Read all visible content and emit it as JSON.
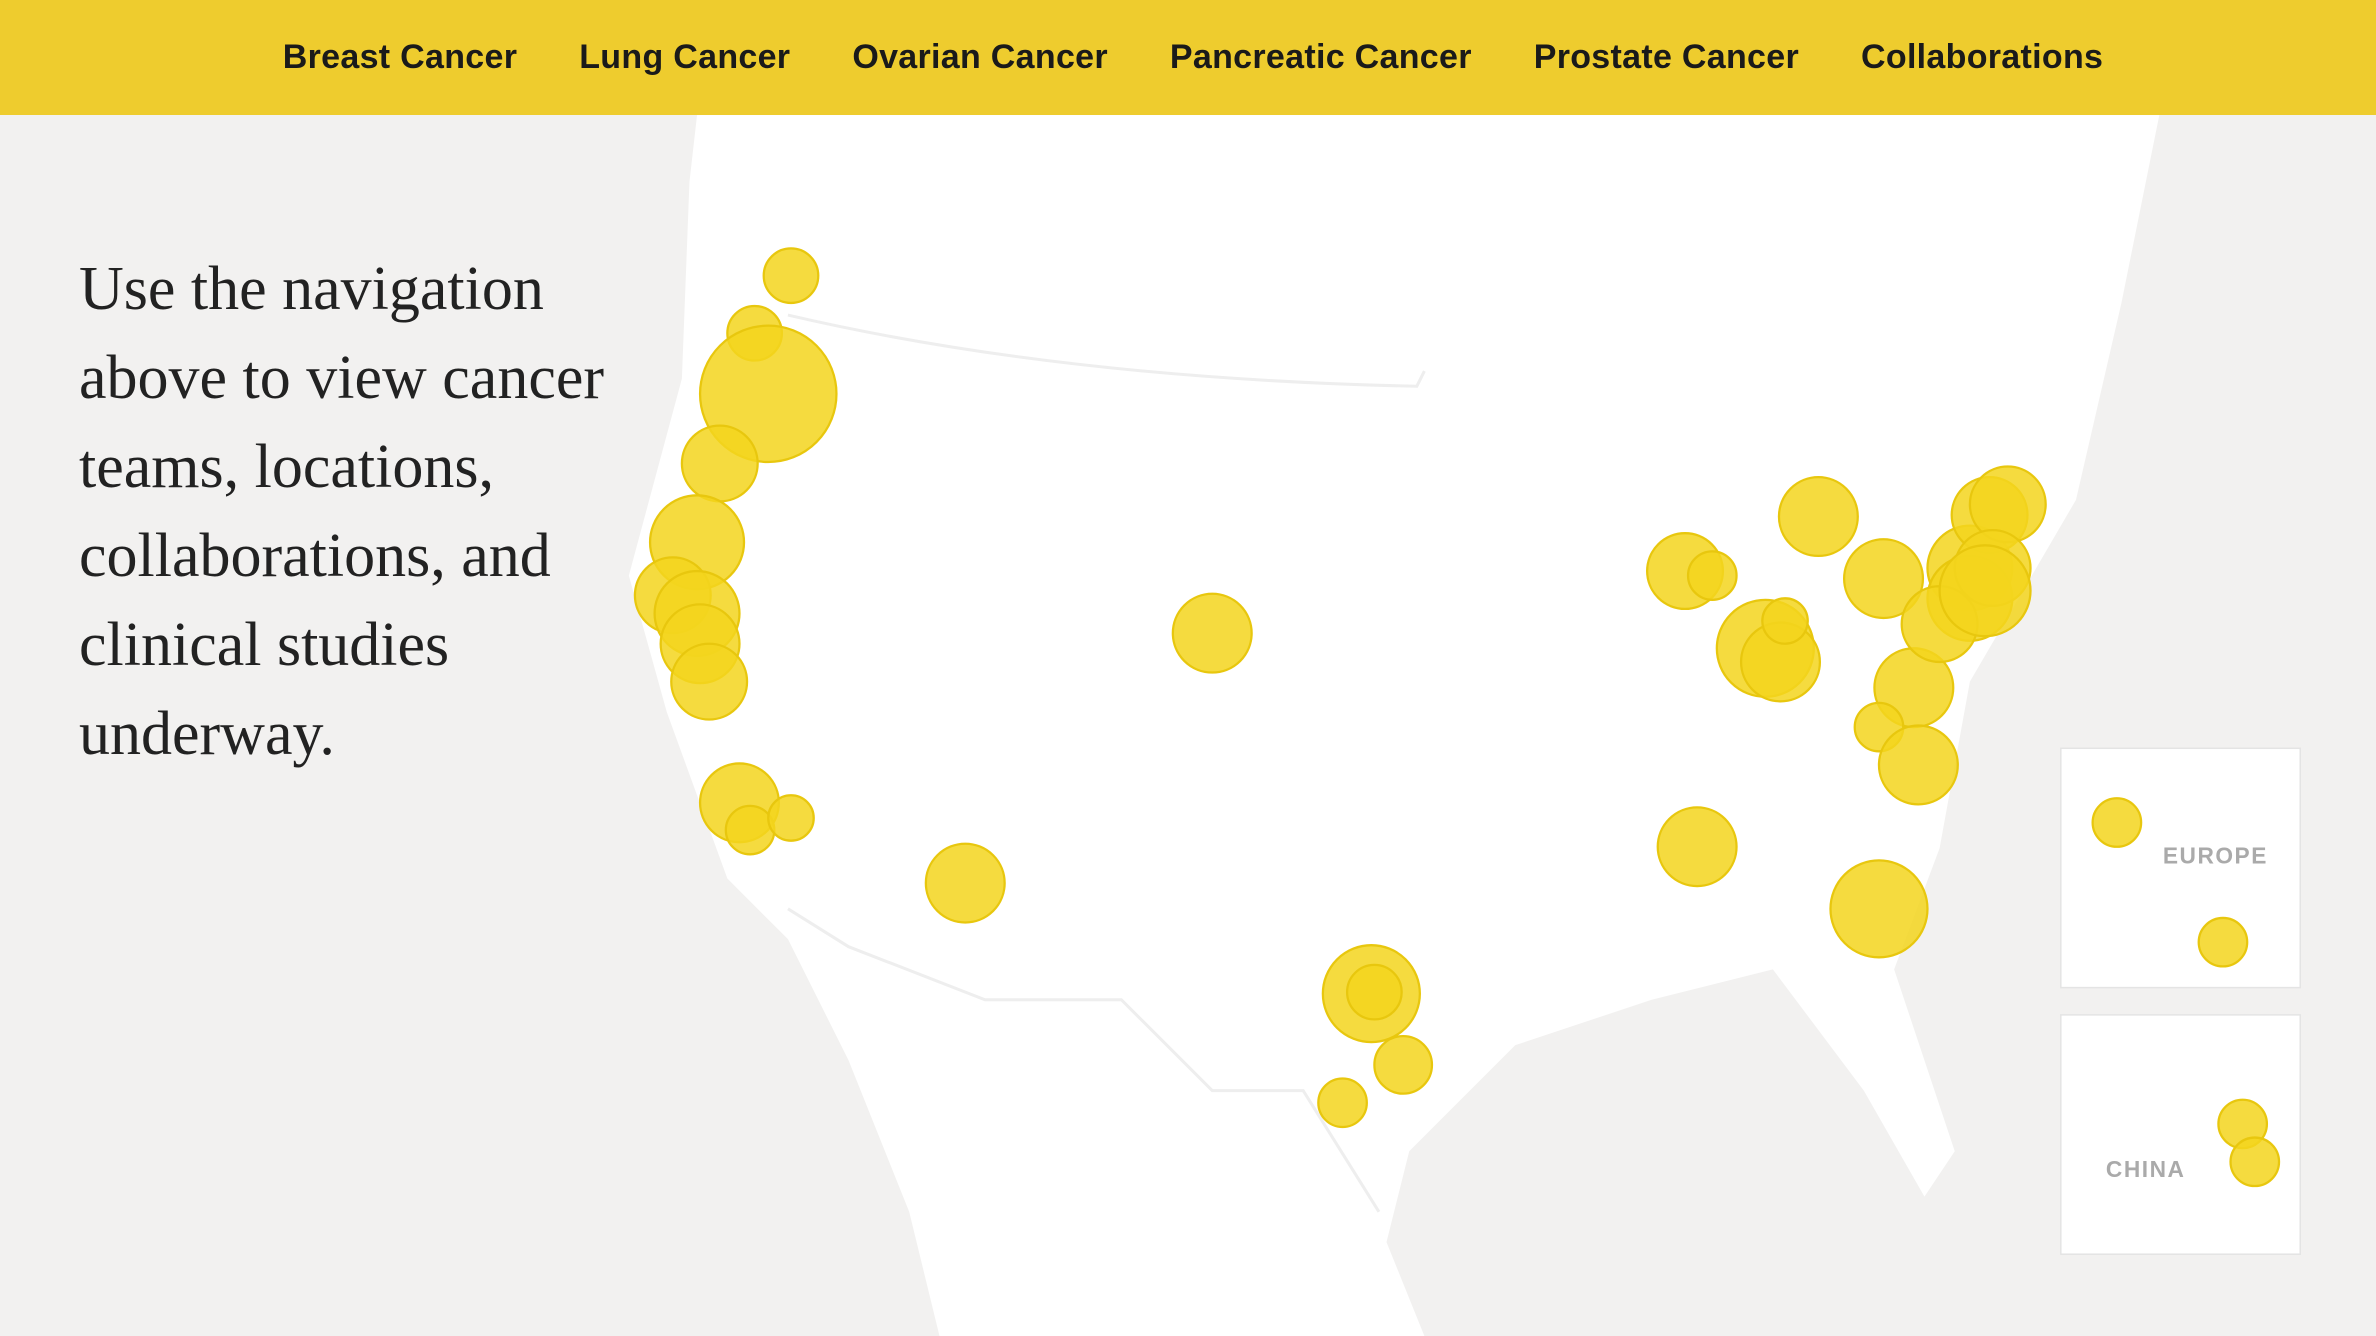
{
  "nav": [
    "Breast Cancer",
    "Lung Cancer",
    "Ovarian Cancer",
    "Pancreatic Cancer",
    "Prostate Cancer",
    "Collaborations"
  ],
  "intro": "Use the navigation above to view cancer teams, locations, collaborations, and clinical studies underway.",
  "insets": [
    "EUROPE",
    "CHINA"
  ]
}
